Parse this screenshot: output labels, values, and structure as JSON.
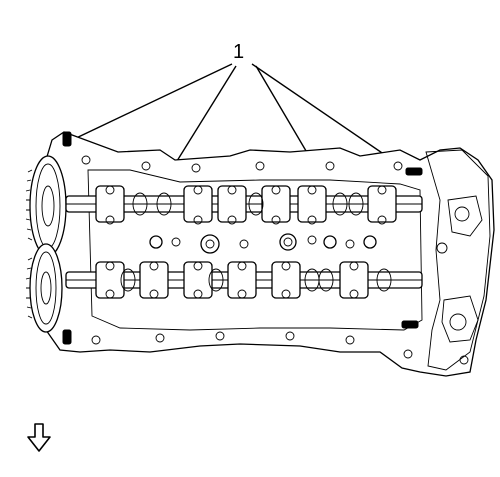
{
  "callout": {
    "label": "1"
  },
  "view_direction_icon": "arrow-down-outline-icon",
  "colors": {
    "ink": "#000000",
    "paper": "#ffffff"
  }
}
